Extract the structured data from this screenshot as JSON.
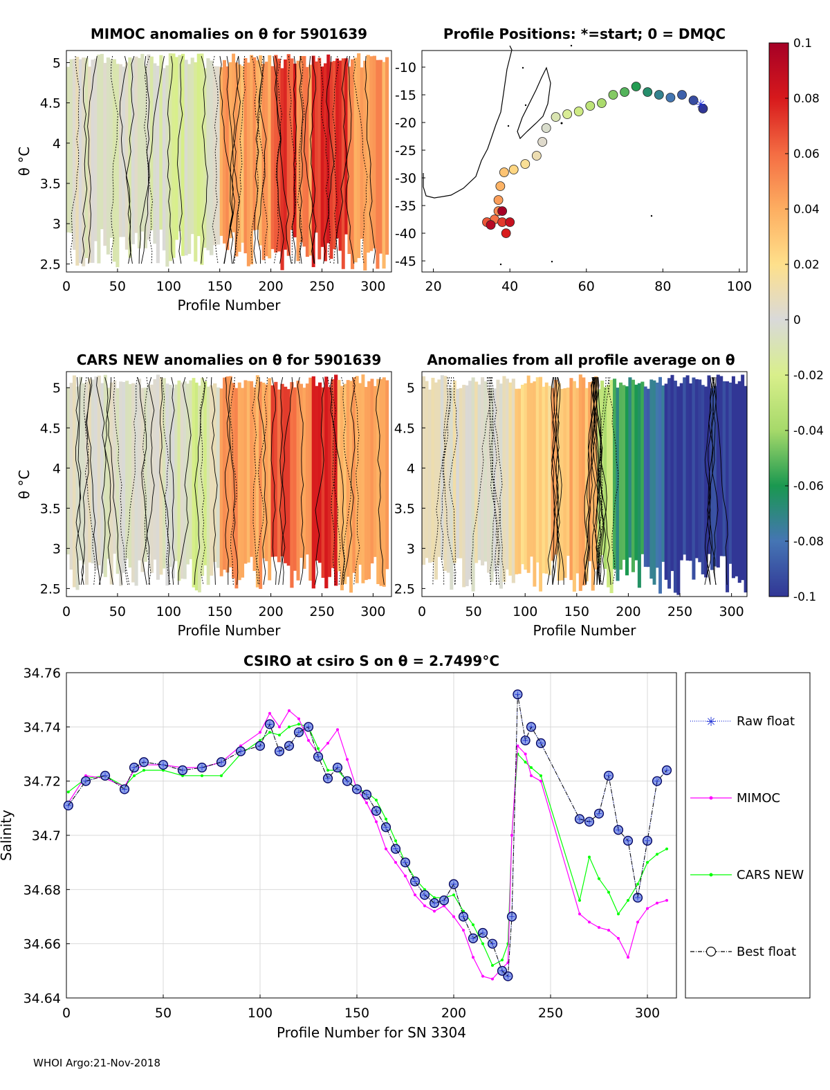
{
  "footer": "WHOI Argo:21-Nov-2018",
  "colors": {
    "raw": "#1c2fd6",
    "mimoc": "#ff00ff",
    "cars": "#00ff00",
    "best": "#000000",
    "marker_fill": "#8fa3e8",
    "grid": "#d9d9d9",
    "best_circle": "#0a0a55"
  },
  "colorbar": {
    "ticks": [
      "0.1",
      "0.08",
      "0.06",
      "0.04",
      "0.02",
      "0",
      "-0.02",
      "-0.04",
      "-0.06",
      "-0.08",
      "-0.1"
    ],
    "range": [
      -0.1,
      0.1
    ],
    "stops": [
      "#a50026",
      "#d7191c",
      "#f46d43",
      "#fdae61",
      "#fee08b",
      "#d9d9d9",
      "#d9ef8b",
      "#a6d96a",
      "#1a9850",
      "#4575b4",
      "#313695"
    ]
  },
  "chart_data": [
    {
      "type": "heatmap",
      "title": "MIMOC anomalies on θ  for 5901639",
      "xlabel": "Profile Number",
      "ylabel": "θ °C",
      "xlim": [
        0,
        318
      ],
      "ylim": [
        2.4,
        5.15
      ],
      "xticks": [
        "0",
        "50",
        "100",
        "150",
        "200",
        "250",
        "300"
      ],
      "yticks": [
        "2.5",
        "3",
        "3.5",
        "4",
        "4.5",
        "5"
      ],
      "anomaly_bands": [
        {
          "x": [
            0,
            30
          ],
          "value": 0.0
        },
        {
          "x": [
            30,
            100
          ],
          "value": -0.005
        },
        {
          "x": [
            100,
            140
          ],
          "value": -0.012
        },
        {
          "x": [
            140,
            150
          ],
          "value": 0.005
        },
        {
          "x": [
            150,
            200
          ],
          "value": 0.042
        },
        {
          "x": [
            200,
            225
          ],
          "value": 0.07
        },
        {
          "x": [
            225,
            240
          ],
          "value": 0.05
        },
        {
          "x": [
            240,
            275
          ],
          "value": 0.075
        },
        {
          "x": [
            275,
            315
          ],
          "value": 0.045
        }
      ]
    },
    {
      "type": "scatter",
      "title": "Profile Positions: *=start; 0 = DMQC",
      "xlabel": "",
      "ylabel": "",
      "xlim": [
        17,
        102
      ],
      "ylim": [
        -47,
        -7
      ],
      "xticks": [
        "20",
        "40",
        "60",
        "80",
        "100"
      ],
      "yticks": [
        "-10",
        "-15",
        "-20",
        "-25",
        "-30",
        "-35",
        "-40",
        "-45"
      ],
      "track": [
        [
          90.5,
          -17.5
        ],
        [
          88,
          -16
        ],
        [
          85,
          -15
        ],
        [
          82,
          -15.5
        ],
        [
          79,
          -15
        ],
        [
          76,
          -14.5
        ],
        [
          73,
          -13.5
        ],
        [
          70,
          -14.5
        ],
        [
          67,
          -15
        ],
        [
          64,
          -16.5
        ],
        [
          61,
          -17
        ],
        [
          58,
          -18
        ],
        [
          55,
          -18.5
        ],
        [
          52,
          -19
        ],
        [
          49.5,
          -21
        ],
        [
          48.5,
          -23.5
        ],
        [
          47,
          -26
        ],
        [
          44,
          -27.5
        ],
        [
          41,
          -28.5
        ],
        [
          38.5,
          -29
        ],
        [
          37.5,
          -31.5
        ],
        [
          37,
          -34
        ],
        [
          37,
          -36
        ],
        [
          36,
          -37.5
        ],
        [
          34,
          -38
        ],
        [
          38,
          -38
        ],
        [
          39,
          -40
        ],
        [
          40,
          -38
        ],
        [
          35,
          -38.5
        ],
        [
          38,
          -36
        ]
      ]
    },
    {
      "type": "heatmap",
      "title": "CARS NEW anomalies on θ for 5901639",
      "xlabel": "Profile Number",
      "ylabel": "θ °C",
      "xlim": [
        0,
        318
      ],
      "ylim": [
        2.4,
        5.2
      ],
      "xticks": [
        "0",
        "50",
        "100",
        "150",
        "200",
        "250",
        "300"
      ],
      "yticks": [
        "2.5",
        "3",
        "3.5",
        "4",
        "4.5",
        "5"
      ],
      "anomaly_bands": [
        {
          "x": [
            0,
            100
          ],
          "value": 0.0
        },
        {
          "x": [
            100,
            120
          ],
          "value": -0.005
        },
        {
          "x": [
            120,
            140
          ],
          "value": -0.015
        },
        {
          "x": [
            140,
            150
          ],
          "value": 0.0
        },
        {
          "x": [
            150,
            200
          ],
          "value": 0.045
        },
        {
          "x": [
            200,
            225
          ],
          "value": 0.065
        },
        {
          "x": [
            225,
            240
          ],
          "value": 0.05
        },
        {
          "x": [
            240,
            265
          ],
          "value": 0.075
        },
        {
          "x": [
            265,
            315
          ],
          "value": 0.04
        }
      ]
    },
    {
      "type": "heatmap",
      "title": "Anomalies from all profile average on θ",
      "xlabel": "Profile Number",
      "ylabel": "",
      "xlim": [
        0,
        315
      ],
      "ylim": [
        2.4,
        5.2
      ],
      "xticks": [
        "0",
        "50",
        "100",
        "150",
        "200",
        "250",
        "300"
      ],
      "yticks": [
        "2.5",
        "3",
        "3.5",
        "4",
        "4.5",
        "5"
      ],
      "anomaly_bands": [
        {
          "x": [
            0,
            90
          ],
          "value": 0.005
        },
        {
          "x": [
            90,
            125
          ],
          "value": 0.025
        },
        {
          "x": [
            125,
            170
          ],
          "value": 0.035
        },
        {
          "x": [
            170,
            185
          ],
          "value": -0.03
        },
        {
          "x": [
            185,
            215
          ],
          "value": -0.06
        },
        {
          "x": [
            215,
            235
          ],
          "value": -0.08
        },
        {
          "x": [
            235,
            315
          ],
          "value": -0.1
        }
      ]
    },
    {
      "type": "line",
      "title": "CSIRO at csiro S on θ = 2.7499°C",
      "xlabel": "Profile Number for SN 3304",
      "ylabel": "Salinity",
      "xlim": [
        0,
        315
      ],
      "ylim": [
        34.64,
        34.76
      ],
      "xticks": [
        "0",
        "50",
        "100",
        "150",
        "200",
        "250",
        "300"
      ],
      "yticks": [
        "34.76",
        "34.74",
        "34.72",
        "34.7",
        "34.68",
        "34.66",
        "34.64"
      ],
      "legend": [
        "Raw float",
        "MIMOC",
        "CARS NEW",
        "Best float"
      ],
      "x": [
        1,
        10,
        20,
        30,
        35,
        40,
        50,
        60,
        70,
        80,
        90,
        100,
        105,
        110,
        115,
        120,
        125,
        130,
        135,
        140,
        145,
        150,
        155,
        160,
        165,
        170,
        175,
        180,
        185,
        190,
        195,
        200,
        205,
        210,
        215,
        220,
        225,
        228,
        230,
        233,
        237,
        240,
        245,
        265,
        270,
        275,
        280,
        285,
        290,
        295,
        300,
        305,
        310
      ],
      "series": [
        {
          "name": "Raw float",
          "values": [
            34.711,
            34.72,
            34.722,
            34.717,
            34.725,
            34.727,
            34.726,
            34.724,
            34.725,
            34.727,
            34.731,
            34.733,
            34.741,
            34.731,
            34.733,
            34.738,
            34.74,
            34.729,
            34.721,
            34.725,
            34.72,
            34.717,
            34.715,
            34.709,
            34.703,
            34.695,
            34.69,
            34.683,
            34.678,
            34.675,
            34.676,
            34.682,
            34.67,
            34.662,
            34.664,
            34.66,
            34.65,
            34.648,
            34.67,
            34.752,
            34.735,
            34.74,
            34.734,
            34.706,
            34.705,
            34.708,
            34.722,
            34.702,
            34.698,
            34.677,
            34.698,
            34.72,
            34.724
          ]
        },
        {
          "name": "MIMOC",
          "values": [
            34.712,
            34.722,
            34.721,
            34.718,
            34.724,
            34.726,
            34.726,
            34.725,
            34.725,
            34.727,
            34.733,
            34.738,
            34.745,
            34.74,
            34.746,
            34.743,
            34.735,
            34.73,
            34.734,
            34.739,
            34.728,
            34.717,
            34.712,
            34.705,
            34.695,
            34.69,
            34.685,
            34.678,
            34.674,
            34.672,
            34.674,
            34.67,
            34.665,
            34.655,
            34.648,
            34.647,
            34.651,
            34.653,
            34.7,
            34.733,
            34.73,
            34.722,
            34.72,
            34.671,
            34.668,
            34.666,
            34.665,
            34.662,
            34.655,
            34.668,
            34.673,
            34.675,
            34.676
          ]
        },
        {
          "name": "CARS NEW",
          "values": [
            34.716,
            34.721,
            34.722,
            34.718,
            34.722,
            34.724,
            34.724,
            34.722,
            34.722,
            34.722,
            34.73,
            34.735,
            34.738,
            34.737,
            34.74,
            34.741,
            34.74,
            34.732,
            34.724,
            34.724,
            34.72,
            34.717,
            34.716,
            34.713,
            34.706,
            34.698,
            34.69,
            34.684,
            34.68,
            34.677,
            34.677,
            34.678,
            34.672,
            34.667,
            34.66,
            34.652,
            34.654,
            34.66,
            34.7,
            34.73,
            34.727,
            34.725,
            34.722,
            34.676,
            34.692,
            34.684,
            34.679,
            34.671,
            34.676,
            34.682,
            34.69,
            34.693,
            34.695
          ]
        },
        {
          "name": "Best float",
          "values": [
            34.711,
            34.72,
            34.722,
            34.717,
            34.725,
            34.727,
            34.726,
            34.724,
            34.725,
            34.727,
            34.731,
            34.733,
            34.741,
            34.731,
            34.733,
            34.738,
            34.74,
            34.729,
            34.721,
            34.725,
            34.72,
            34.717,
            34.715,
            34.709,
            34.703,
            34.695,
            34.69,
            34.683,
            34.678,
            34.675,
            34.676,
            34.682,
            34.67,
            34.662,
            34.664,
            34.66,
            34.65,
            34.648,
            34.67,
            34.752,
            34.735,
            34.74,
            34.734,
            34.706,
            34.705,
            34.708,
            34.722,
            34.702,
            34.698,
            34.677,
            34.698,
            34.72,
            34.724
          ]
        }
      ]
    }
  ]
}
